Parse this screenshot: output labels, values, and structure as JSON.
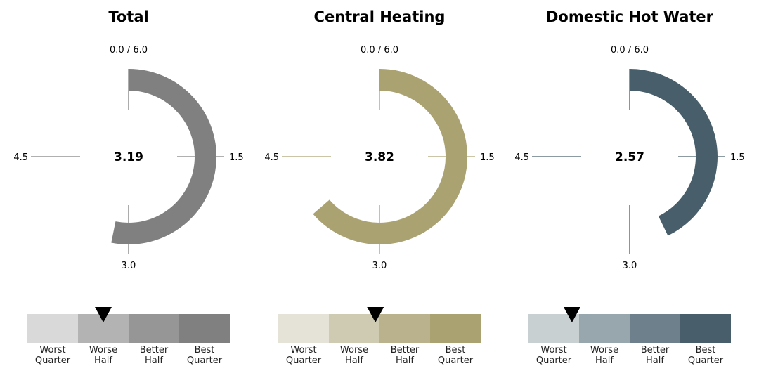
{
  "chart_data": [
    {
      "type": "radial-gauge",
      "title": "Total",
      "value": 3.19,
      "value_label": "3.19",
      "range": [
        0,
        6
      ],
      "ticks": [
        "0.0 / 6.0",
        "1.5",
        "3.0",
        "4.5"
      ],
      "color": "#808080",
      "bar": {
        "segment_labels": [
          [
            "Worst",
            "Quarter"
          ],
          [
            "Worse",
            "Half"
          ],
          [
            "Better",
            "Half"
          ],
          [
            "Best",
            "Quarter"
          ]
        ],
        "segment_colors": [
          "#d9d9d9",
          "#b3b3b3",
          "#969696",
          "#808080"
        ],
        "marker_position": 0.375
      }
    },
    {
      "type": "radial-gauge",
      "title": "Central Heating",
      "value": 3.82,
      "value_label": "3.82",
      "range": [
        0,
        6
      ],
      "ticks": [
        "0.0 / 6.0",
        "1.5",
        "3.0",
        "4.5"
      ],
      "color": "#aba272",
      "bar": {
        "segment_labels": [
          [
            "Worst",
            "Quarter"
          ],
          [
            "Worse",
            "Half"
          ],
          [
            "Better",
            "Half"
          ],
          [
            "Best",
            "Quarter"
          ]
        ],
        "segment_colors": [
          "#e5e2d7",
          "#cfcbb2",
          "#bab28c",
          "#aba272"
        ],
        "marker_position": 0.48
      }
    },
    {
      "type": "radial-gauge",
      "title": "Domestic Hot Water",
      "value": 2.57,
      "value_label": "2.57",
      "range": [
        0,
        6
      ],
      "ticks": [
        "0.0 / 6.0",
        "1.5",
        "3.0",
        "4.5"
      ],
      "color": "#485f6b",
      "bar": {
        "segment_labels": [
          [
            "Worst",
            "Quarter"
          ],
          [
            "Worse",
            "Half"
          ],
          [
            "Better",
            "Half"
          ],
          [
            "Best",
            "Quarter"
          ]
        ],
        "segment_colors": [
          "#c8d0d2",
          "#98a6ad",
          "#6d808b",
          "#485f6b"
        ],
        "marker_position": 0.215
      }
    }
  ]
}
